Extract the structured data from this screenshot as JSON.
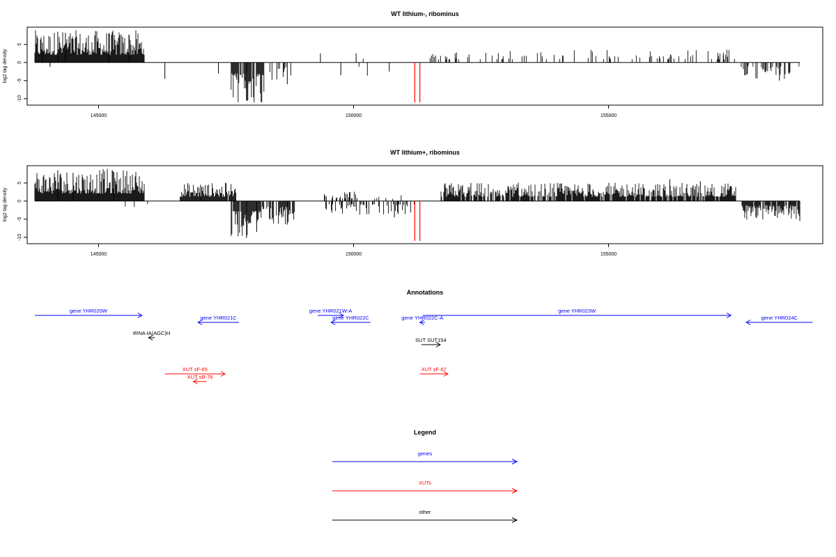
{
  "chart_data": [
    {
      "type": "bar",
      "title": "WT lithium-, ribominus",
      "ylabel": "log2 tag density",
      "xlim": [
        143600,
        159200
      ],
      "ylim": [
        -11,
        9
      ],
      "xticks": [
        145000,
        150000,
        155000
      ],
      "yticks": [
        5,
        0,
        -5,
        -10
      ],
      "region_start": 143750,
      "region_end": 158750,
      "bands": [
        {
          "from": 143750,
          "to": 145900,
          "sign": 1,
          "density": 1.0,
          "amp": 7
        },
        {
          "from": 146600,
          "to": 147400,
          "sign": 1,
          "density": 0.02,
          "amp": 3
        },
        {
          "from": 147600,
          "to": 148250,
          "sign": -1,
          "density": 0.9,
          "amp": 10
        },
        {
          "from": 148250,
          "to": 148900,
          "sign": -1,
          "density": 0.12,
          "amp": 4
        },
        {
          "from": 149300,
          "to": 150800,
          "sign": -1,
          "density": 0.02,
          "amp": 3
        },
        {
          "from": 149300,
          "to": 150800,
          "sign": 1,
          "density": 0.01,
          "amp": 2
        },
        {
          "from": 151500,
          "to": 157500,
          "sign": 1,
          "density": 0.18,
          "amp": 3
        },
        {
          "from": 157600,
          "to": 158750,
          "sign": -1,
          "density": 0.35,
          "amp": 3.5
        }
      ],
      "spikes": [
        {
          "x": 143900,
          "y": 5.5
        },
        {
          "x": 144200,
          "y": 8.5
        },
        {
          "x": 144350,
          "y": 8.2
        },
        {
          "x": 145200,
          "y": 8
        },
        {
          "x": 145600,
          "y": 7.5
        },
        {
          "x": 144050,
          "y": -1.2
        },
        {
          "x": 146300,
          "y": -4.5
        },
        {
          "x": 147350,
          "y": -3
        },
        {
          "x": 147900,
          "y": -10.5
        },
        {
          "x": 148700,
          "y": -6
        },
        {
          "x": 149750,
          "y": -3.5
        },
        {
          "x": 149350,
          "y": 2.5
        },
        {
          "x": 150050,
          "y": 2.5
        },
        {
          "x": 150700,
          "y": -2.5
        },
        {
          "x": 157250,
          "y": 2
        },
        {
          "x": 158350,
          "y": -5
        }
      ],
      "markers": [
        151200,
        151300
      ],
      "marker_y": -11
    },
    {
      "type": "bar",
      "title": "WT lithium+, ribominus",
      "ylabel": "log2 tag density",
      "xlim": [
        143600,
        159200
      ],
      "ylim": [
        -11,
        9
      ],
      "xticks": [
        145000,
        150000,
        155000
      ],
      "yticks": [
        5,
        0,
        -5,
        -10
      ],
      "region_start": 143750,
      "region_end": 158750,
      "bands": [
        {
          "from": 143750,
          "to": 145900,
          "sign": 1,
          "density": 1.0,
          "amp": 7
        },
        {
          "from": 145400,
          "to": 146300,
          "sign": -1,
          "density": 0.04,
          "amp": 2
        },
        {
          "from": 146600,
          "to": 147700,
          "sign": 1,
          "density": 0.95,
          "amp": 4
        },
        {
          "from": 147600,
          "to": 148200,
          "sign": -1,
          "density": 0.95,
          "amp": 9
        },
        {
          "from": 148200,
          "to": 148900,
          "sign": -1,
          "density": 0.7,
          "amp": 5
        },
        {
          "from": 149400,
          "to": 150100,
          "sign": 1,
          "density": 0.45,
          "amp": 2.5
        },
        {
          "from": 149400,
          "to": 151200,
          "sign": -1,
          "density": 0.4,
          "amp": 3
        },
        {
          "from": 150100,
          "to": 151200,
          "sign": 1,
          "density": 0.15,
          "amp": 1.5
        },
        {
          "from": 151700,
          "to": 157500,
          "sign": 1,
          "density": 0.85,
          "amp": 4
        },
        {
          "from": 157600,
          "to": 158750,
          "sign": -1,
          "density": 0.9,
          "amp": 4
        }
      ],
      "spikes": [
        {
          "x": 144200,
          "y": 8.5
        },
        {
          "x": 144500,
          "y": 7.8
        },
        {
          "x": 145300,
          "y": 8
        },
        {
          "x": 147000,
          "y": 4.5
        },
        {
          "x": 147900,
          "y": -10.2
        },
        {
          "x": 148100,
          "y": -8.5
        },
        {
          "x": 148700,
          "y": -6.5
        },
        {
          "x": 150800,
          "y": -4.5
        },
        {
          "x": 152300,
          "y": 5
        },
        {
          "x": 156200,
          "y": 6
        },
        {
          "x": 156800,
          "y": 5.5
        },
        {
          "x": 158750,
          "y": -5.5
        }
      ],
      "markers": [
        151200,
        151300
      ],
      "marker_y": -11
    }
  ],
  "annotations": {
    "title": "Annotations",
    "xlim": [
      143600,
      159200
    ],
    "items": [
      {
        "label": "gene YHR020W",
        "start": 143750,
        "end": 145850,
        "row": 1,
        "color": "#0000ff"
      },
      {
        "label": "gene YHR021C",
        "start": 147750,
        "end": 146950,
        "row": 2,
        "color": "#0000ff"
      },
      {
        "label": "gene YHR021W-A",
        "start": 149300,
        "end": 149800,
        "row": 1,
        "color": "#0000ff"
      },
      {
        "label": "gene YHR022C",
        "start": 150330,
        "end": 149560,
        "row": 2,
        "color": "#0000ff"
      },
      {
        "label": "gene YHR022C-A",
        "start": 151400,
        "end": 151300,
        "row": 2,
        "color": "#0000ff"
      },
      {
        "label": "gene YHR023W",
        "start": 151360,
        "end": 157400,
        "row": 1,
        "color": "#0000ff"
      },
      {
        "label": "gene YHR024C",
        "start": 159000,
        "end": 157700,
        "row": 2,
        "color": "#0000ff"
      },
      {
        "label": "tRNA tA(AGC)H",
        "start": 146100,
        "end": 145980,
        "row": 3,
        "color": "#000000"
      },
      {
        "label": "SUT SUT154",
        "start": 151330,
        "end": 151700,
        "row": 4,
        "color": "#000000"
      },
      {
        "label": "XUT sF-65",
        "start": 146300,
        "end": 147480,
        "row": 5,
        "color": "#ff0000"
      },
      {
        "label": "XUT sR-76",
        "start": 147120,
        "end": 146860,
        "row": 6,
        "color": "#ff0000"
      },
      {
        "label": "XUT sF-67",
        "start": 151300,
        "end": 151850,
        "row": 5,
        "color": "#ff0000"
      }
    ]
  },
  "legend": {
    "title": "Legend",
    "items": [
      {
        "label": "genes",
        "color": "#0000ff"
      },
      {
        "label": "XUTs",
        "color": "#ff0000"
      },
      {
        "label": "other",
        "color": "#000000"
      }
    ]
  }
}
